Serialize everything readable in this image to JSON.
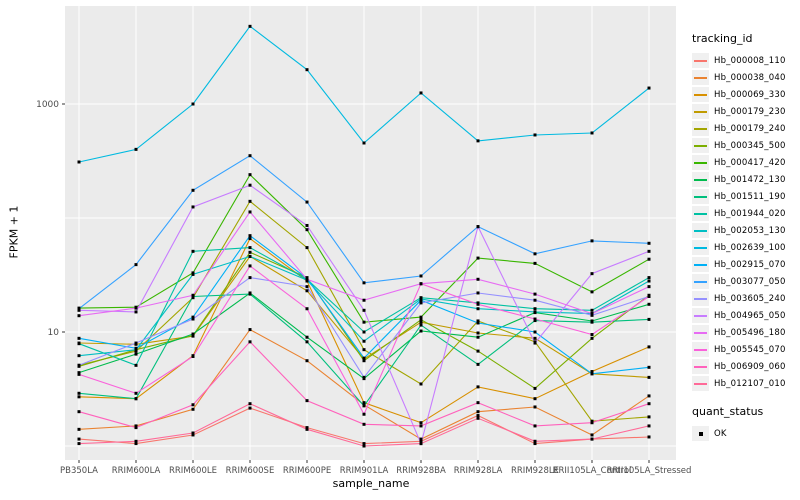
{
  "figure": {
    "y_axis": {
      "title": "FPKM + 1",
      "tick_labels": [
        "10",
        "1000"
      ],
      "tick_values": [
        10,
        1000
      ]
    },
    "x_axis": {
      "title": "sample_name"
    },
    "legend": {
      "tracking_title": "tracking_id",
      "quant_title": "quant_status",
      "quant_items": [
        {
          "label": "OK",
          "marker": "black-square"
        }
      ]
    },
    "colors": {
      "panel_bg": "#EBEBEB",
      "grid": "#FFFFFF",
      "tick_text": "#4D4D4D",
      "tick_mark": "#333333",
      "point": "#000000",
      "key_bg": "#F0F0F0"
    }
  },
  "chart_data": {
    "type": "line",
    "title": "",
    "xlabel": "sample_name",
    "ylabel": "FPKM + 1",
    "y_scale": "log10",
    "ylim": [
      0.75,
      7000
    ],
    "y_breaks_labeled": [
      10,
      1000
    ],
    "y_gridline_values": [
      1,
      10,
      100,
      1000
    ],
    "grid": true,
    "legend_position": "right",
    "point_marker": "black-square",
    "quant_status": "OK",
    "categories": [
      "PB350LA",
      "RRIM600LA",
      "RRIM600LE",
      "RRIM600SE",
      "RRIM600PE",
      "RRIM901LA",
      "RRIM928BA",
      "RRIM928LA",
      "RRIM928LE",
      "RRII105LA_Control",
      "RRII105LA_Stressed"
    ],
    "series": [
      {
        "name": "Hb_000008_110",
        "color": "#F8766D",
        "values": [
          1.15,
          1.05,
          1.25,
          2.15,
          1.45,
          1.05,
          1.1,
          1.85,
          1.05,
          1.15,
          1.2
        ]
      },
      {
        "name": "Hb_000038_040",
        "color": "#EA8331",
        "values": [
          1.4,
          1.5,
          2.1,
          10.5,
          5.6,
          2.3,
          1.15,
          2.0,
          2.2,
          1.25,
          2.75
        ]
      },
      {
        "name": "Hb_000069_330",
        "color": "#D89000",
        "values": [
          2.7,
          2.6,
          6.2,
          66,
          28,
          2.4,
          1.6,
          3.3,
          2.6,
          4.5,
          7.4
        ]
      },
      {
        "name": "Hb_000179_230",
        "color": "#C09B00",
        "values": [
          8.0,
          7.8,
          9.2,
          46,
          23,
          5.8,
          12.2,
          9.8,
          8.8,
          4.3,
          4.0
        ]
      },
      {
        "name": "Hb_000179_240",
        "color": "#A3A500",
        "values": [
          5.1,
          6.8,
          20,
          140,
          55,
          7.0,
          3.5,
          12.5,
          8.2,
          1.65,
          1.8
        ]
      },
      {
        "name": "Hb_000345_500",
        "color": "#7CAE00",
        "values": [
          5.0,
          7.0,
          9.3,
          50,
          30,
          5.6,
          12.8,
          6.8,
          3.2,
          8.8,
          21
        ]
      },
      {
        "name": "Hb_000417_420",
        "color": "#39B600",
        "values": [
          16.2,
          16.5,
          33,
          240,
          79,
          12.2,
          13.5,
          44.5,
          40,
          22.5,
          43.5
        ]
      },
      {
        "name": "Hb_001472_130",
        "color": "#00BB4E",
        "values": [
          4.4,
          6.4,
          9.6,
          22,
          9.0,
          3.9,
          10.2,
          9.0,
          14.8,
          12.5,
          17.5
        ]
      },
      {
        "name": "Hb_001511_190",
        "color": "#00BF7D",
        "values": [
          2.9,
          2.6,
          20.5,
          21.5,
          8.2,
          2.25,
          11.5,
          5.2,
          12.6,
          12.2,
          12.9
        ]
      },
      {
        "name": "Hb_001944_020",
        "color": "#00C1A3",
        "values": [
          7.9,
          5.1,
          51,
          55,
          29,
          10,
          20,
          18,
          16,
          15.5,
          30
        ]
      },
      {
        "name": "Hb_002053_130",
        "color": "#00BFC4",
        "values": [
          6.2,
          7.0,
          32,
          46,
          28.5,
          8.3,
          19.5,
          16,
          15,
          14.5,
          28
        ]
      },
      {
        "name": "Hb_002639_100",
        "color": "#00BAE0",
        "values": [
          310,
          400,
          1000,
          4800,
          2000,
          455,
          1250,
          475,
          535,
          557,
          1380
        ]
      },
      {
        "name": "Hb_002915_070",
        "color": "#00B0F6",
        "values": [
          8.8,
          7.2,
          13.5,
          70,
          29.5,
          5.9,
          19,
          12,
          10,
          4.3,
          4.9
        ]
      },
      {
        "name": "Hb_003077_050",
        "color": "#35A2FF",
        "values": [
          16.0,
          39,
          175,
          352,
          138,
          27,
          31,
          84,
          48.5,
          63,
          60
        ]
      },
      {
        "name": "Hb_003605_240",
        "color": "#9590FF",
        "values": [
          5.1,
          8.0,
          13,
          30,
          25,
          4.0,
          18,
          22,
          19,
          14.0,
          20.5
        ]
      },
      {
        "name": "Hb_004965_050",
        "color": "#C77CFF",
        "values": [
          15.5,
          15.0,
          125,
          194,
          86,
          15.5,
          1.05,
          84,
          8.0,
          32.5,
          51
        ]
      },
      {
        "name": "Hb_005496_180",
        "color": "#E76BF3",
        "values": [
          13.9,
          16.2,
          21,
          113,
          29,
          19,
          26.5,
          29,
          21.5,
          14.5,
          25
        ]
      },
      {
        "name": "Hb_005545_070",
        "color": "#FA62DB",
        "values": [
          4.25,
          2.9,
          6.1,
          38,
          16,
          1.9,
          26.5,
          17.5,
          13,
          9.5,
          20.5
        ]
      },
      {
        "name": "Hb_006909_060",
        "color": "#FF62BC",
        "values": [
          2.0,
          1.45,
          2.3,
          8.2,
          2.5,
          1.55,
          1.5,
          2.4,
          1.5,
          1.6,
          2.35
        ]
      },
      {
        "name": "Hb_012107_010",
        "color": "#FF6A98",
        "values": [
          1.05,
          1.1,
          1.3,
          2.35,
          1.4,
          1.0,
          1.05,
          1.75,
          1.1,
          1.15,
          1.5
        ]
      }
    ]
  }
}
